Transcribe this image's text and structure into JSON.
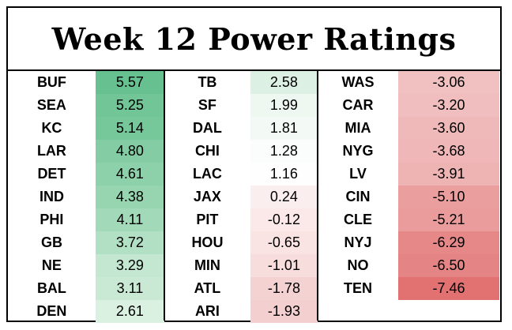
{
  "title": "Week 12 Power Ratings",
  "columns": [
    {
      "rows": [
        {
          "team": "BUF",
          "rating": "5.57",
          "color": "#66c08f"
        },
        {
          "team": "SEA",
          "rating": "5.25",
          "color": "#71c597"
        },
        {
          "team": "KC",
          "rating": "5.14",
          "color": "#76c79a"
        },
        {
          "team": "LAR",
          "rating": "4.80",
          "color": "#84cda4"
        },
        {
          "team": "DET",
          "rating": "4.61",
          "color": "#8dd1aa"
        },
        {
          "team": "IND",
          "rating": "4.38",
          "color": "#97d5b1"
        },
        {
          "team": "PHI",
          "rating": "4.11",
          "color": "#a2dab9"
        },
        {
          "team": "GB",
          "rating": "3.72",
          "color": "#b2e0c4"
        },
        {
          "team": "NE",
          "rating": "3.29",
          "color": "#c3e7d0"
        },
        {
          "team": "BAL",
          "rating": "3.11",
          "color": "#c9e9d4"
        },
        {
          "team": "DEN",
          "rating": "2.61",
          "color": "#daf0e1"
        }
      ]
    },
    {
      "rows": [
        {
          "team": "TB",
          "rating": "2.58",
          "color": "#dcf1e3"
        },
        {
          "team": "SF",
          "rating": "1.99",
          "color": "#eef8f1"
        },
        {
          "team": "DAL",
          "rating": "1.81",
          "color": "#f3faf5"
        },
        {
          "team": "CHI",
          "rating": "1.28",
          "color": "#fafdfb"
        },
        {
          "team": "LAC",
          "rating": "1.16",
          "color": "#fdfefd"
        },
        {
          "team": "JAX",
          "rating": "0.24",
          "color": "#fbeeee"
        },
        {
          "team": "PIT",
          "rating": "-0.12",
          "color": "#fbe9e9"
        },
        {
          "team": "HOU",
          "rating": "-0.65",
          "color": "#f9e3e3"
        },
        {
          "team": "MIN",
          "rating": "-1.01",
          "color": "#f8dddd"
        },
        {
          "team": "ATL",
          "rating": "-1.78",
          "color": "#f5d2d2"
        },
        {
          "team": "ARI",
          "rating": "-1.93",
          "color": "#f4cfcf"
        }
      ]
    },
    {
      "rows": [
        {
          "team": "WAS",
          "rating": "-3.06",
          "color": "#f1c0c0"
        },
        {
          "team": "CAR",
          "rating": "-3.20",
          "color": "#f0bebe"
        },
        {
          "team": "MIA",
          "rating": "-3.60",
          "color": "#efb9b9"
        },
        {
          "team": "NYG",
          "rating": "-3.68",
          "color": "#efb7b7"
        },
        {
          "team": "LV",
          "rating": "-3.91",
          "color": "#eeb4b4"
        },
        {
          "team": "CIN",
          "rating": "-5.10",
          "color": "#ea9e9e"
        },
        {
          "team": "CLE",
          "rating": "-5.21",
          "color": "#ea9b9b"
        },
        {
          "team": "NYJ",
          "rating": "-6.29",
          "color": "#e68888"
        },
        {
          "team": "NO",
          "rating": "-6.50",
          "color": "#e58484"
        },
        {
          "team": "TEN",
          "rating": "-7.46",
          "color": "#e27272"
        }
      ]
    }
  ]
}
